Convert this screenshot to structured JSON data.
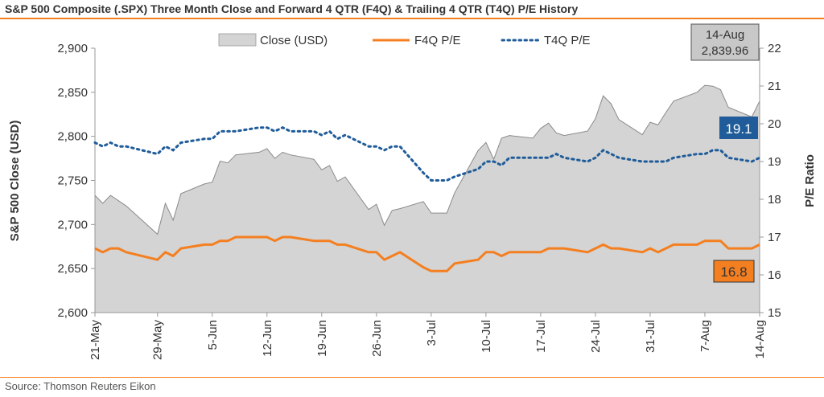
{
  "title": "S&P 500 Composite (.SPX) Three Month Close and Forward 4 QTR (F4Q) & Trailing 4 QTR (T4Q) P/E History",
  "source": "Source: Thomson Reuters Eikon",
  "chart_data": {
    "type": "area",
    "title": "S&P 500 Composite (.SPX) Three Month Close and Forward 4 QTR (F4Q) & Trailing 4 QTR (T4Q) P/E History",
    "ylabel": "S&P 500 Close (USD)",
    "y2label": "P/E Ratio",
    "ylim": [
      2600,
      2900
    ],
    "y2lim": [
      15,
      22
    ],
    "yticks": [
      "2,600",
      "2,650",
      "2,700",
      "2,750",
      "2,800",
      "2,850",
      "2,900"
    ],
    "y2ticks": [
      "15",
      "16",
      "17",
      "18",
      "19",
      "20",
      "21",
      "22"
    ],
    "xticks": [
      "21-May",
      "29-May",
      "5-Jun",
      "12-Jun",
      "19-Jun",
      "26-Jun",
      "3-Jul",
      "10-Jul",
      "17-Jul",
      "24-Jul",
      "31-Jul",
      "7-Aug",
      "14-Aug"
    ],
    "legend_position": "top",
    "grid": false,
    "x": [
      "2018-05-21",
      "2018-05-22",
      "2018-05-23",
      "2018-05-24",
      "2018-05-25",
      "2018-05-29",
      "2018-05-30",
      "2018-05-31",
      "2018-06-01",
      "2018-06-04",
      "2018-06-05",
      "2018-06-06",
      "2018-06-07",
      "2018-06-08",
      "2018-06-11",
      "2018-06-12",
      "2018-06-13",
      "2018-06-14",
      "2018-06-15",
      "2018-06-18",
      "2018-06-19",
      "2018-06-20",
      "2018-06-21",
      "2018-06-22",
      "2018-06-25",
      "2018-06-26",
      "2018-06-27",
      "2018-06-28",
      "2018-06-29",
      "2018-07-02",
      "2018-07-03",
      "2018-07-05",
      "2018-07-06",
      "2018-07-09",
      "2018-07-10",
      "2018-07-11",
      "2018-07-12",
      "2018-07-13",
      "2018-07-16",
      "2018-07-17",
      "2018-07-18",
      "2018-07-19",
      "2018-07-20",
      "2018-07-23",
      "2018-07-24",
      "2018-07-25",
      "2018-07-26",
      "2018-07-27",
      "2018-07-30",
      "2018-07-31",
      "2018-08-01",
      "2018-08-02",
      "2018-08-03",
      "2018-08-06",
      "2018-08-07",
      "2018-08-08",
      "2018-08-09",
      "2018-08-10",
      "2018-08-13",
      "2018-08-14"
    ],
    "series": [
      {
        "name": "Close (USD)",
        "type": "area",
        "color": "#d4d4d4",
        "values": [
          2733,
          2724,
          2733,
          2727,
          2721,
          2689,
          2724,
          2705,
          2735,
          2746,
          2748,
          2772,
          2770,
          2779,
          2782,
          2786,
          2775,
          2782,
          2779,
          2774,
          2762,
          2767,
          2749,
          2754,
          2717,
          2723,
          2699,
          2716,
          2718,
          2726,
          2713,
          2713,
          2736,
          2784,
          2793,
          2774,
          2798,
          2801,
          2798,
          2809,
          2815,
          2804,
          2801,
          2806,
          2820,
          2846,
          2837,
          2819,
          2802,
          2816,
          2813,
          2827,
          2840,
          2850,
          2858,
          2857,
          2853,
          2833,
          2822,
          2840
        ]
      },
      {
        "name": "F4Q P/E",
        "type": "line",
        "axis": "right",
        "color": "#f47f20",
        "values": [
          16.7,
          16.6,
          16.7,
          16.7,
          16.6,
          16.4,
          16.6,
          16.5,
          16.7,
          16.8,
          16.8,
          16.9,
          16.9,
          17.0,
          17.0,
          17.0,
          16.9,
          17.0,
          17.0,
          16.9,
          16.9,
          16.9,
          16.8,
          16.8,
          16.6,
          16.6,
          16.4,
          16.5,
          16.6,
          16.2,
          16.1,
          16.1,
          16.3,
          16.4,
          16.6,
          16.6,
          16.5,
          16.6,
          16.6,
          16.6,
          16.7,
          16.7,
          16.7,
          16.6,
          16.7,
          16.8,
          16.7,
          16.7,
          16.6,
          16.7,
          16.6,
          16.7,
          16.8,
          16.8,
          16.9,
          16.9,
          16.9,
          16.7,
          16.7,
          16.8
        ]
      },
      {
        "name": "T4Q P/E",
        "type": "line",
        "style": "dotted",
        "axis": "right",
        "color": "#1f5c99",
        "values": [
          19.5,
          19.4,
          19.5,
          19.4,
          19.4,
          19.2,
          19.4,
          19.3,
          19.5,
          19.6,
          19.6,
          19.8,
          19.8,
          19.8,
          19.9,
          19.9,
          19.8,
          19.9,
          19.8,
          19.8,
          19.7,
          19.8,
          19.6,
          19.7,
          19.4,
          19.4,
          19.3,
          19.4,
          19.4,
          18.7,
          18.5,
          18.5,
          18.6,
          18.8,
          19.0,
          19.0,
          18.9,
          19.1,
          19.1,
          19.1,
          19.1,
          19.2,
          19.1,
          19.0,
          19.1,
          19.3,
          19.2,
          19.1,
          19.0,
          19.0,
          19.0,
          19.0,
          19.1,
          19.2,
          19.2,
          19.3,
          19.3,
          19.1,
          19.0,
          19.1
        ]
      }
    ],
    "annotations": {
      "last_date": "14-Aug",
      "last_close": "2,839.96",
      "last_t4q": "19.1",
      "last_f4q": "16.8"
    }
  }
}
